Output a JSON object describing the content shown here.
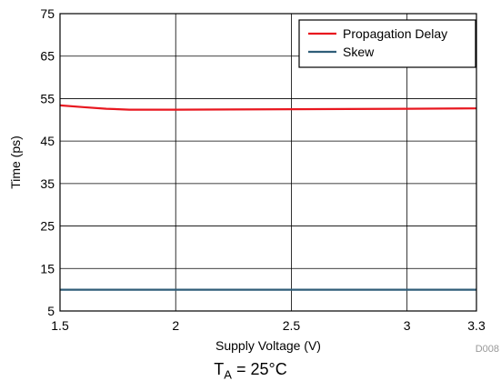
{
  "chart_data": {
    "type": "line",
    "xlabel": "Supply Voltage (V)",
    "ylabel": "Time (ps)",
    "xlim": [
      1.5,
      3.3
    ],
    "ylim": [
      5,
      75
    ],
    "x_ticks": [
      "1.5",
      "2",
      "2.5",
      "3",
      "3.3"
    ],
    "y_ticks": [
      "5",
      "15",
      "25",
      "35",
      "45",
      "55",
      "65",
      "75"
    ],
    "grid": true,
    "legend_position": "top-right",
    "series": [
      {
        "name": "Propagation Delay",
        "color": "#e8171f",
        "x": [
          1.5,
          1.6,
          1.7,
          1.8,
          2.0,
          2.5,
          3.0,
          3.3
        ],
        "y": [
          53.4,
          53.0,
          52.6,
          52.4,
          52.4,
          52.5,
          52.6,
          52.7
        ]
      },
      {
        "name": "Skew",
        "color": "#2f5d78",
        "x": [
          1.5,
          2.0,
          2.5,
          3.0,
          3.3
        ],
        "y": [
          10,
          10,
          10,
          10,
          10
        ]
      }
    ],
    "annotation": "D008"
  },
  "caption": {
    "t": "T",
    "sub": "A",
    "rest": " = 25°C"
  }
}
